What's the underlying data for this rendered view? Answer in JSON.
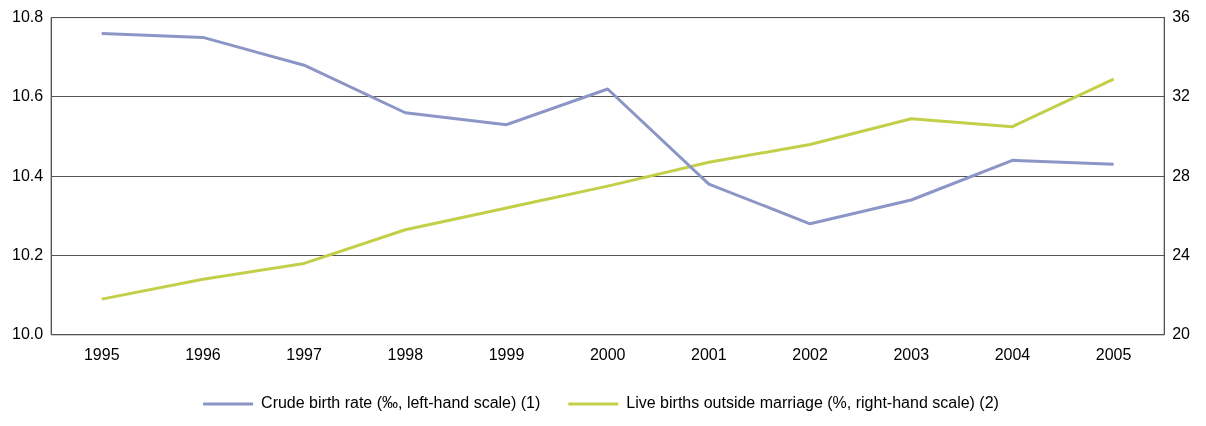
{
  "chart_data": {
    "type": "line",
    "categories": [
      "1995",
      "1996",
      "1997",
      "1998",
      "1999",
      "2000",
      "2001",
      "2002",
      "2003",
      "2004",
      "2005"
    ],
    "series": [
      {
        "name": "Crude birth rate (‰, left-hand scale) (1)",
        "color": "#8c96c6",
        "values": [
          10.76,
          10.75,
          10.68,
          10.56,
          10.53,
          10.62,
          10.38,
          10.28,
          10.34,
          10.44,
          10.43
        ]
      },
      {
        "name": "Live births outside marriage (%, right-hand scale) (2)",
        "color": "#c3cf48",
        "axis": "y2",
        "values": [
          21.8,
          22.8,
          23.6,
          25.3,
          26.4,
          27.5,
          28.7,
          29.6,
          30.9,
          30.5,
          32.9
        ]
      }
    ],
    "ylim": [
      10.0,
      10.8
    ],
    "yticks": [
      {
        "value": 10.0,
        "label": "10.0"
      },
      10.2,
      10.4,
      10.6,
      10.8
    ],
    "y2lim": [
      20,
      36
    ],
    "y2ticks": [
      20,
      24,
      28,
      32,
      36
    ],
    "grid": "y",
    "legend": "bottom",
    "marker": "none",
    "line_style": "solid"
  }
}
